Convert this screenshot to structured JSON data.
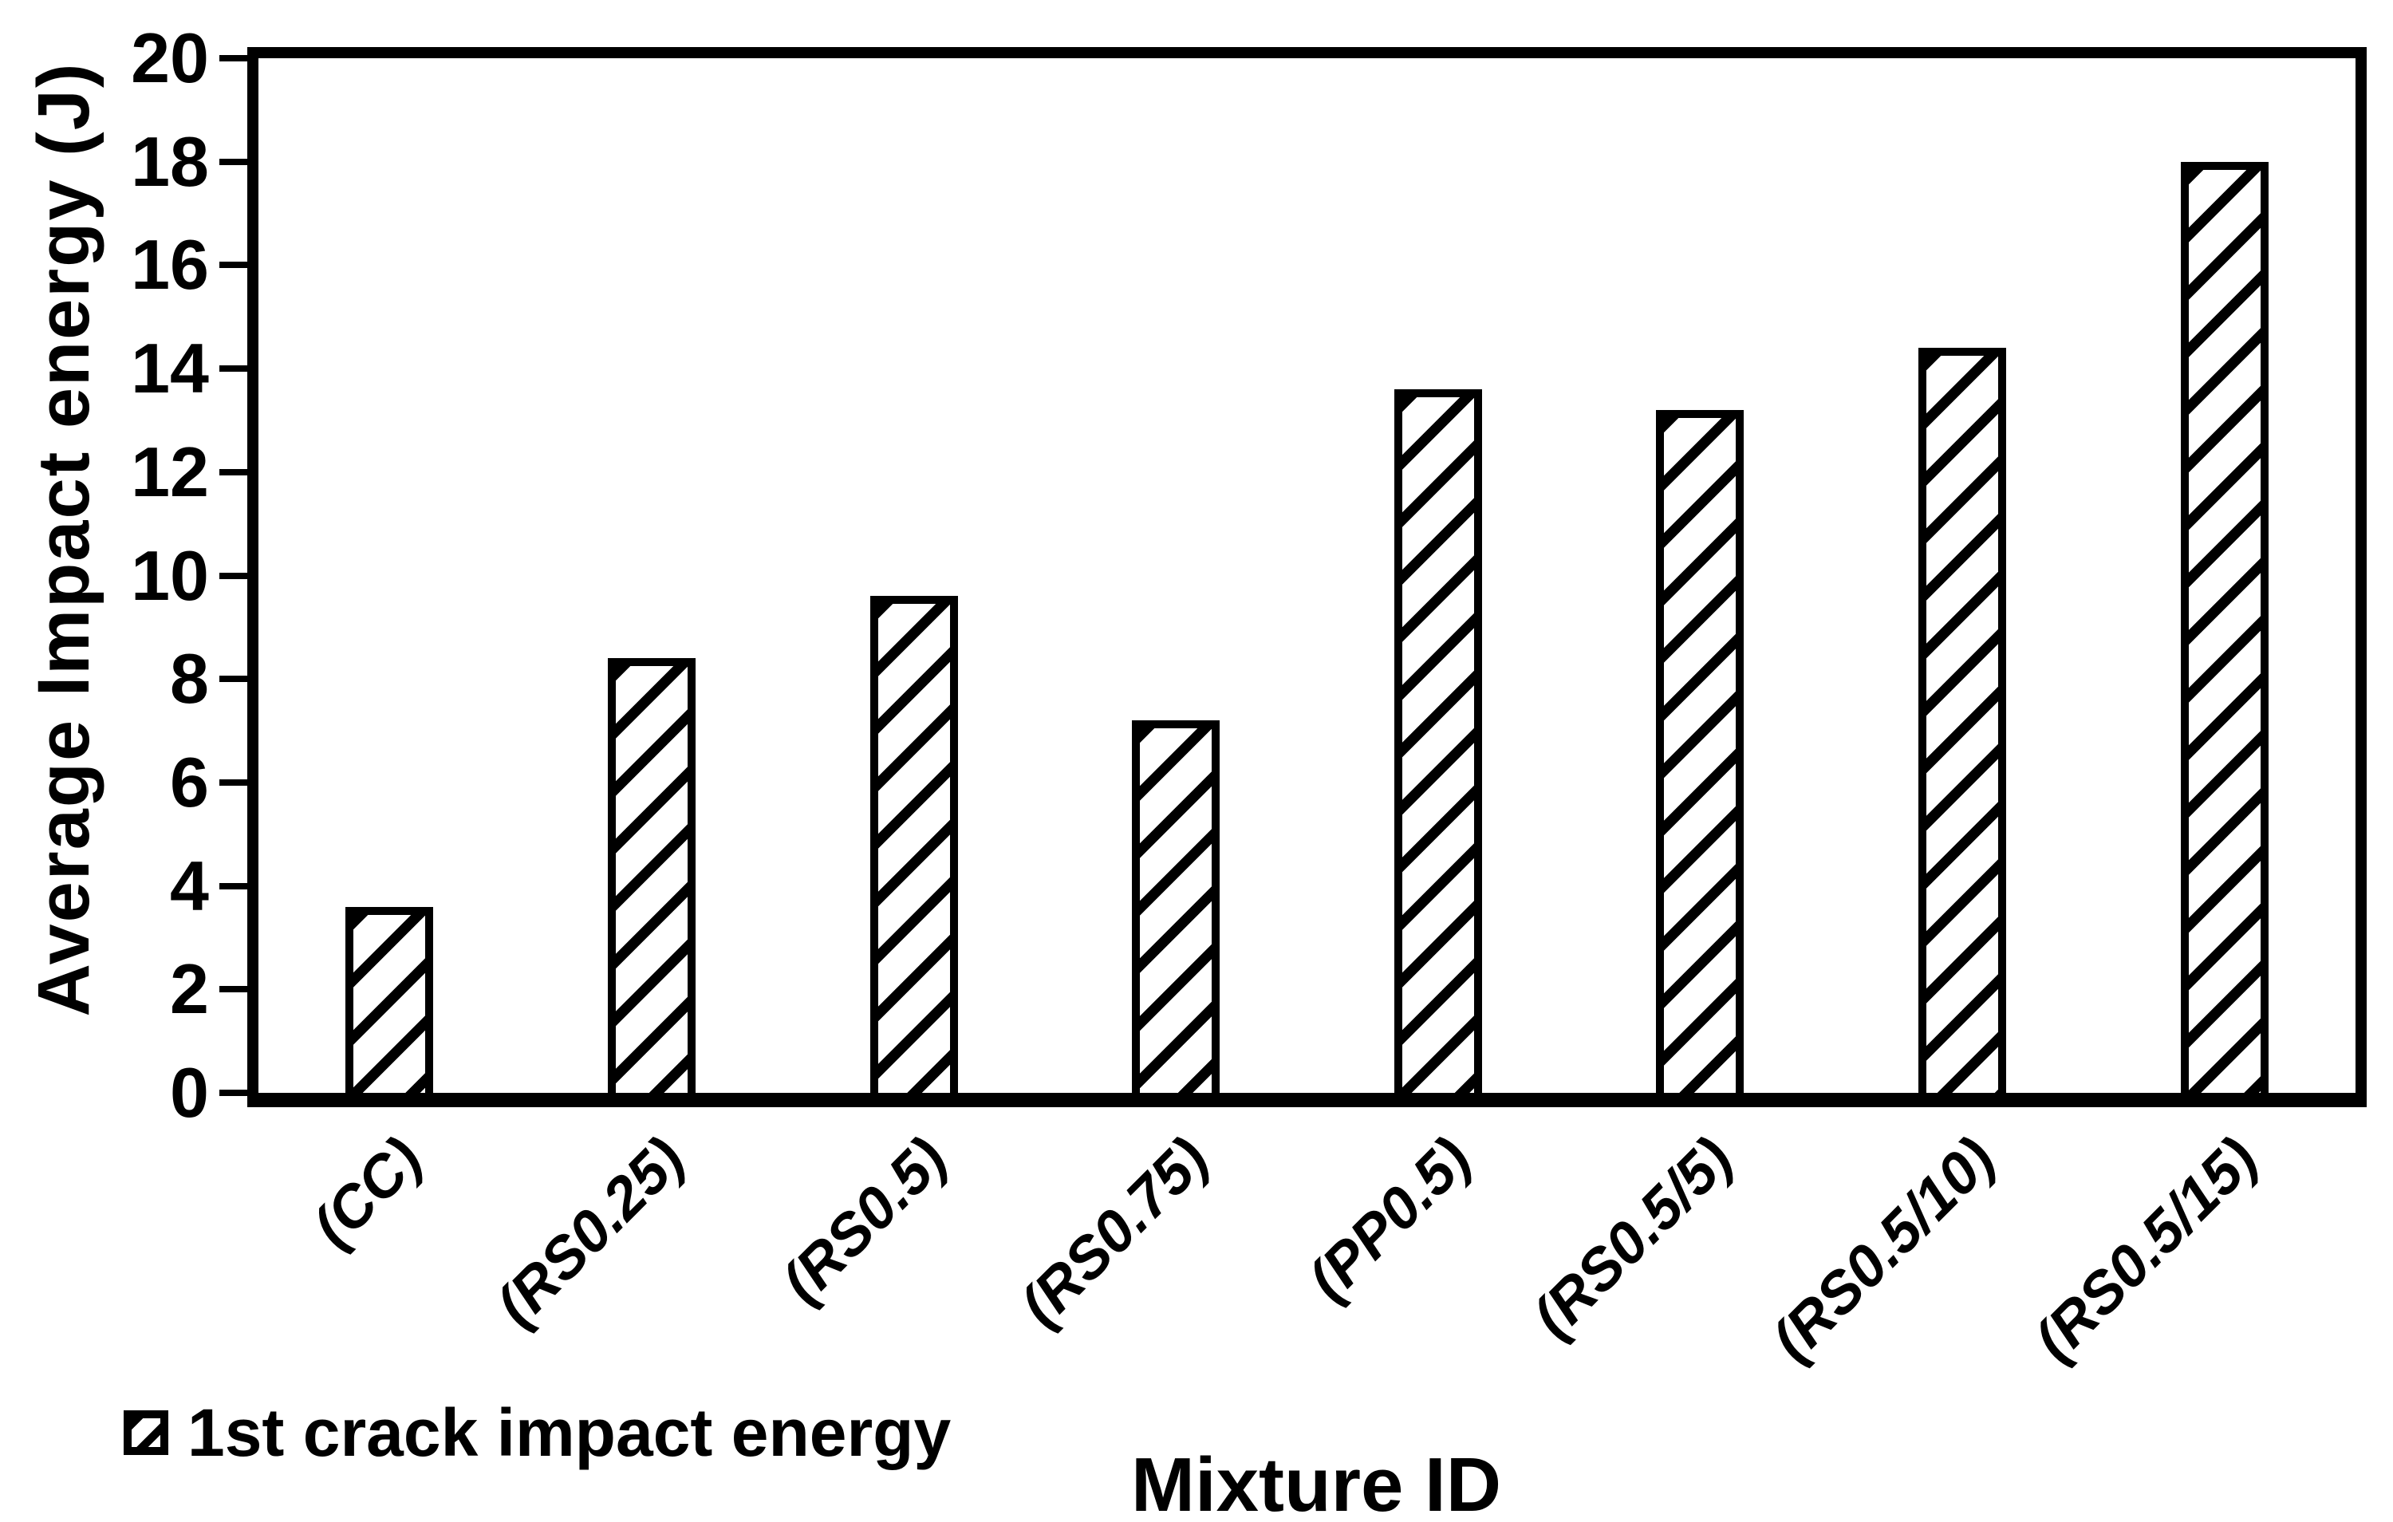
{
  "colors": {
    "ink": "#000000",
    "background": "#ffffff"
  },
  "chart_data": {
    "type": "bar",
    "title": "",
    "categories": [
      "(CC)",
      "(RS0.25)",
      "(RS0.5)",
      "(RS0.75)",
      "(PP0.5)",
      "(RS0.5/5)",
      "(RS0.5/10)",
      "(RS0.5/15)"
    ],
    "values": [
      3.6,
      8.4,
      9.6,
      7.2,
      13.6,
      13.2,
      14.4,
      18.0
    ],
    "series": [
      {
        "name": "1st crack impact energy",
        "values": [
          3.6,
          8.4,
          9.6,
          7.2,
          13.6,
          13.2,
          14.4,
          18.0
        ]
      }
    ],
    "xlabel": "Mixture ID",
    "ylabel": "Average Impact energy  (J)",
    "ylim": [
      0,
      20
    ],
    "ytick_step": 2,
    "ytick_labels": [
      "20",
      "18",
      "16",
      "14",
      "12",
      "10",
      "8",
      "6",
      "4",
      "2",
      "0"
    ],
    "grid": false,
    "legend_position": "bottom-left",
    "bar_style": "black-diagonal-hatch",
    "bar_fill": "diagonal stripes bottom-left to top-right"
  },
  "legend": {
    "label": "1st crack impact energy"
  }
}
